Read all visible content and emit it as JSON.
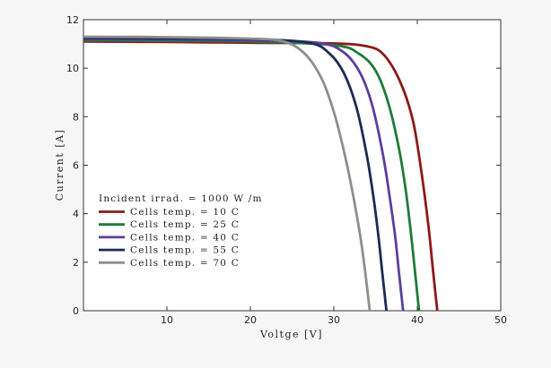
{
  "chart_data": {
    "type": "line",
    "xlabel": "Voltge [V]",
    "ylabel": "Current [A]",
    "xlim": [
      0,
      50
    ],
    "ylim": [
      0,
      12
    ],
    "xticks": [
      "10",
      "20",
      "30",
      "40",
      "50"
    ],
    "yticks": [
      "0",
      "2",
      "4",
      "6",
      "8",
      "10",
      "12"
    ],
    "grid": false,
    "legend_title": "Incident irrad. = 1000 W /m",
    "legend_position": "center-left",
    "series": [
      {
        "name": "Cells temp. = 10  C",
        "color": "#8b1a1a",
        "isc": 11.1,
        "voc": 42.4,
        "x": [
          0,
          10,
          20,
          30,
          34,
          36,
          38,
          39.5,
          40.5,
          41.3,
          41.9,
          42.4
        ],
        "y": [
          11.1,
          11.08,
          11.05,
          11.02,
          10.9,
          10.55,
          9.4,
          7.8,
          5.7,
          3.6,
          1.6,
          0
        ]
      },
      {
        "name": "Cells temp. = 25  C",
        "color": "#1f7a3a",
        "isc": 11.15,
        "voc": 40.2,
        "x": [
          0,
          10,
          20,
          30,
          33,
          35,
          36.5,
          37.8,
          38.6,
          39.2,
          39.7,
          40.2
        ],
        "y": [
          11.15,
          11.13,
          11.1,
          10.95,
          10.6,
          9.9,
          8.6,
          6.7,
          5.0,
          3.3,
          1.7,
          0
        ]
      },
      {
        "name": "Cells temp. = 40  C",
        "color": "#5a3f9e",
        "isc": 11.2,
        "voc": 38.3,
        "x": [
          0,
          10,
          20,
          28,
          31,
          33,
          34.5,
          35.8,
          36.6,
          37.3,
          37.8,
          38.3
        ],
        "y": [
          11.2,
          11.18,
          11.15,
          11.05,
          10.7,
          9.9,
          8.6,
          6.6,
          4.9,
          3.2,
          1.6,
          0
        ]
      },
      {
        "name": "Cells temp. = 55  C",
        "color": "#1c2b55",
        "isc": 11.25,
        "voc": 36.3,
        "x": [
          0,
          10,
          20,
          27,
          29.5,
          31.2,
          32.7,
          33.9,
          34.7,
          35.3,
          35.8,
          36.3
        ],
        "y": [
          11.25,
          11.23,
          11.2,
          11.05,
          10.6,
          9.8,
          8.4,
          6.5,
          4.8,
          3.2,
          1.6,
          0
        ]
      },
      {
        "name": "Cells temp. = 70  C",
        "color": "#8e8e8e",
        "isc": 11.3,
        "voc": 34.3,
        "x": [
          0,
          10,
          20,
          24,
          26.5,
          28.5,
          30,
          31.4,
          32.4,
          33.2,
          33.8,
          34.3
        ],
        "y": [
          11.3,
          11.28,
          11.22,
          11.1,
          10.6,
          9.6,
          8.2,
          6.3,
          4.6,
          3.0,
          1.5,
          0
        ]
      }
    ]
  }
}
